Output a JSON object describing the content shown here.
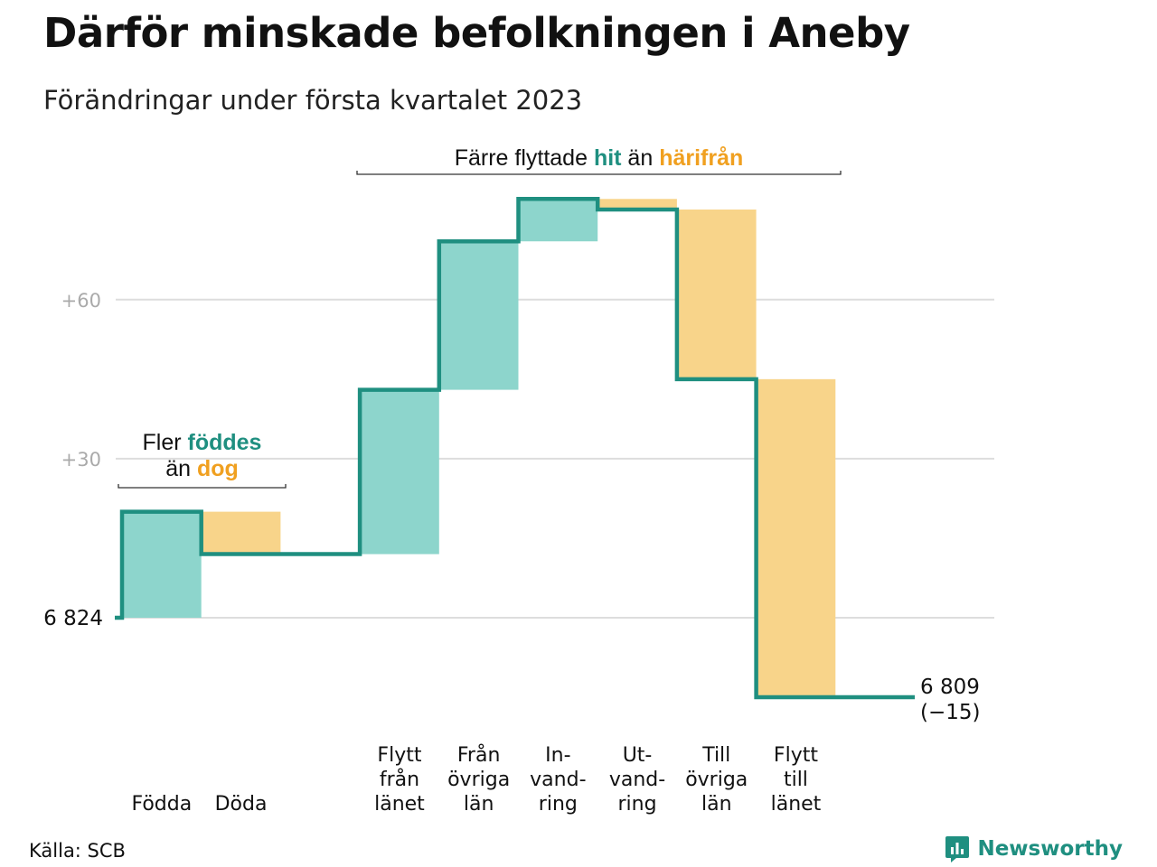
{
  "header": {
    "title": "Därför minskade befolkningen i Aneby",
    "subtitle": "Förändringar under första kvartalet 2023"
  },
  "footer": {
    "source": "Källa: SCB",
    "brand": "Newsworthy",
    "brand_icon": "bar-chart-pin-icon"
  },
  "colors": {
    "line": "#1f8f80",
    "increase": "#8dd5cc",
    "decrease": "#f8d48a",
    "accent_increase": "#1f8f80",
    "accent_decrease": "#f0a020",
    "grid": "#dddddd",
    "tick_label": "#aaaaaa"
  },
  "chart_data": {
    "type": "waterfall",
    "title": "Därför minskade befolkningen i Aneby",
    "subtitle": "Förändringar under första kvartalet 2023",
    "start_value": 6824,
    "start_label": "6 824",
    "end_value": 6809,
    "end_label": "6 809",
    "end_change_label": "(−15)",
    "y_ticks": [
      {
        "offset": 30,
        "label": "+30"
      },
      {
        "offset": 60,
        "label": "+60"
      }
    ],
    "ylim_offset": [
      -17,
      80
    ],
    "steps": [
      {
        "category": "Födda",
        "label_lines": [
          "Födda"
        ],
        "change": 20
      },
      {
        "category": "Döda",
        "label_lines": [
          "Döda"
        ],
        "change": -8
      },
      {
        "category": "",
        "label_lines": [],
        "change": 0
      },
      {
        "category": "Flytt från länet",
        "label_lines": [
          "Flytt",
          "från",
          "länet"
        ],
        "change": 31
      },
      {
        "category": "Från övriga län",
        "label_lines": [
          "Från",
          "övriga",
          "län"
        ],
        "change": 28
      },
      {
        "category": "Invandring",
        "label_lines": [
          "In-",
          "vand-",
          "ring"
        ],
        "change": 8
      },
      {
        "category": "Utvandring",
        "label_lines": [
          "Ut-",
          "vand-",
          "ring"
        ],
        "change": -2
      },
      {
        "category": "Till övriga län",
        "label_lines": [
          "Till",
          "övriga",
          "län"
        ],
        "change": -32
      },
      {
        "category": "Flytt till länet",
        "label_lines": [
          "Flytt",
          "till",
          "länet"
        ],
        "change": -60
      },
      {
        "category": "",
        "label_lines": [],
        "change": 0
      }
    ],
    "annotations": [
      {
        "parts": [
          {
            "text": "Fler ",
            "style": "plain"
          },
          {
            "text": "föddes",
            "style": "increase"
          }
        ],
        "parts2": [
          {
            "text": "än ",
            "style": "plain"
          },
          {
            "text": "dog",
            "style": "decrease"
          }
        ],
        "from_step": 0,
        "to_step": 1
      },
      {
        "parts": [
          {
            "text": "Färre flyttade ",
            "style": "plain"
          },
          {
            "text": "hit",
            "style": "increase"
          },
          {
            "text": " än ",
            "style": "plain"
          },
          {
            "text": "härifrån",
            "style": "decrease"
          }
        ],
        "parts2": [],
        "from_step": 3,
        "to_step": 8
      }
    ],
    "grid": true
  }
}
